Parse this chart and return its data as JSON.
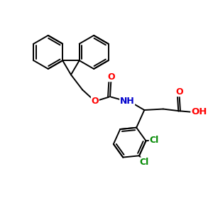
{
  "bg_color": "#ffffff",
  "bond_color": "#000000",
  "atom_colors": {
    "O": "#ff0000",
    "N": "#0000cc",
    "Cl": "#008800",
    "C": "#000000"
  },
  "figsize": [
    3.0,
    3.0
  ],
  "dpi": 100
}
